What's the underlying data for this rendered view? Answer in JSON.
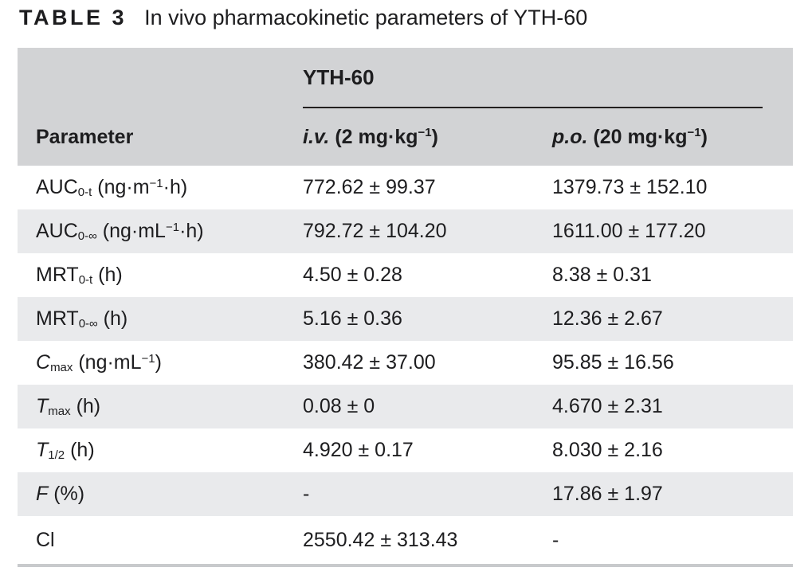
{
  "caption": {
    "label": "TABLE 3",
    "text": "In vivo pharmacokinetic parameters of YTH-60"
  },
  "table": {
    "group_header": "YTH-60",
    "columns": [
      {
        "label": "Parameter"
      },
      {
        "label": "*i.v.* (2 mg·kg^−1^)"
      },
      {
        "label": "*p.o.* (20 mg·kg^−1^)"
      }
    ],
    "rows": [
      {
        "parameter": "AUC~0-t~ (ng·m^−1^·h)",
        "iv": "772.62 ± 99.37",
        "po": "1379.73 ± 152.10"
      },
      {
        "parameter": "AUC~0-∞~ (ng·mL^−1^·h)",
        "iv": "792.72 ± 104.20",
        "po": "1611.00 ± 177.20"
      },
      {
        "parameter": "MRT~0-t~ (h)",
        "iv": "4.50 ± 0.28",
        "po": "8.38 ± 0.31"
      },
      {
        "parameter": "MRT~0-∞~ (h)",
        "iv": "5.16 ± 0.36",
        "po": "12.36 ± 2.67"
      },
      {
        "parameter": "*C*~max~ (ng·mL^−1^)",
        "iv": "380.42 ± 37.00",
        "po": "95.85 ± 16.56"
      },
      {
        "parameter": "*T*~max~ (h)",
        "iv": "0.08 ± 0",
        "po": "4.670 ± 2.31"
      },
      {
        "parameter": "*T*~1/2~ (h)",
        "iv": "4.920 ± 0.17",
        "po": "8.030 ± 2.16"
      },
      {
        "parameter": "*F* (%)",
        "iv": "-",
        "po": "17.86 ± 1.97"
      },
      {
        "parameter": "Cl",
        "iv": "2550.42 ± 313.43",
        "po": "-"
      }
    ],
    "colors": {
      "header_bg": "#d2d3d5",
      "stripe_bg": "#e9eaec",
      "rule": "#231f20",
      "bottom_line": "#c8cacc",
      "text": "#1d1d1f"
    }
  }
}
